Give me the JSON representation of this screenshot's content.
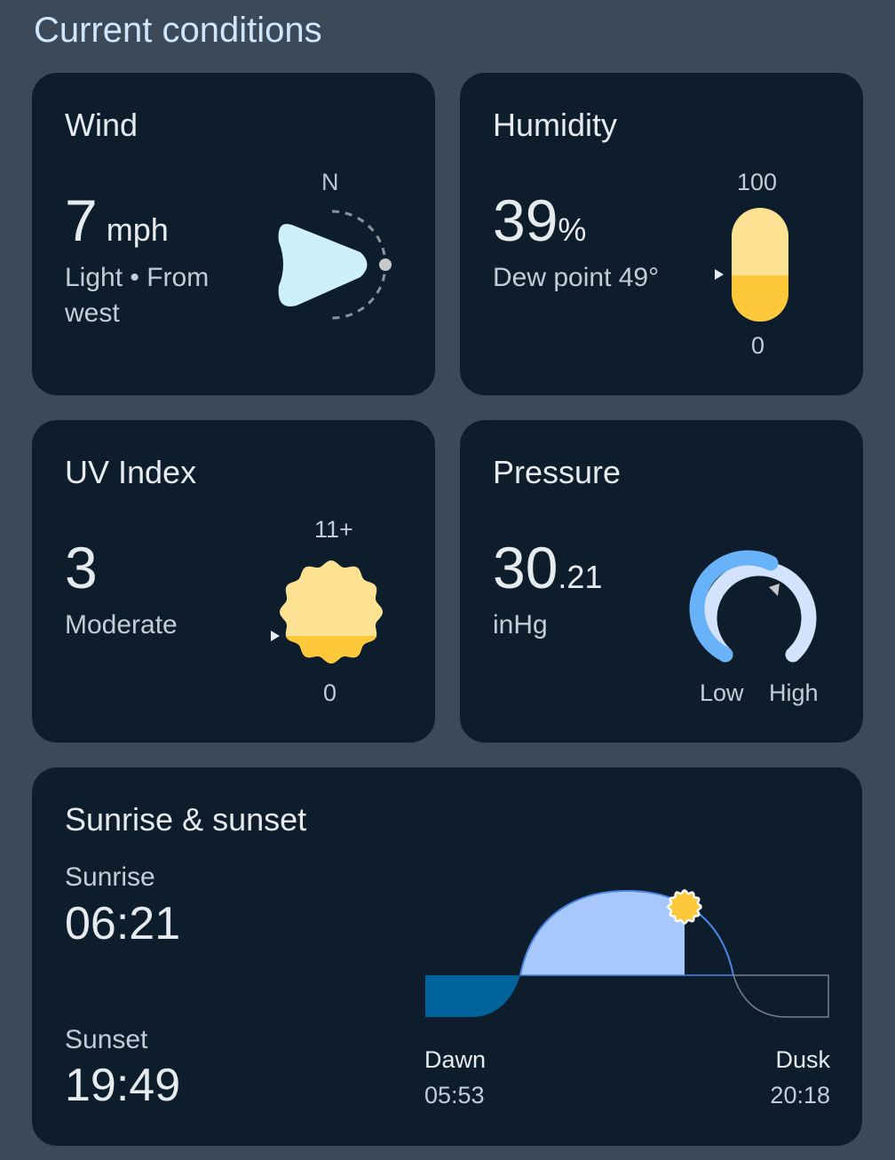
{
  "header": {
    "title": "Current conditions"
  },
  "wind": {
    "title": "Wind",
    "value": "7",
    "unit": "mph",
    "description": "Light • From",
    "description2": "west",
    "compass_label": "N",
    "direction": "west",
    "icon": "wind-direction-arrow"
  },
  "humidity": {
    "title": "Humidity",
    "value": "39",
    "unit": "%",
    "dew_point": "Dew point 49°",
    "scale_max": "100",
    "scale_min": "0",
    "level_percent": 39
  },
  "uv": {
    "title": "UV Index",
    "value": "3",
    "description": "Moderate",
    "scale_max": "11+",
    "scale_min": "0",
    "level": 3
  },
  "pressure": {
    "title": "Pressure",
    "value_int": "30",
    "value_dec": ".21",
    "unit": "inHg",
    "low_label": "Low",
    "high_label": "High"
  },
  "sun": {
    "title": "Sunrise & sunset",
    "sunrise_label": "Sunrise",
    "sunrise": "06:21",
    "sunset_label": "Sunset",
    "sunset": "19:49",
    "dawn_label": "Dawn",
    "dawn": "05:53",
    "dusk_label": "Dusk",
    "dusk": "20:18"
  },
  "colors": {
    "background": "#3c4959",
    "card": "#0e1d2b",
    "yellow": "#fdc93a",
    "light_yellow": "#fde293",
    "blue": "#67b2f9",
    "light_blue": "#a8c7fa",
    "wind_arrow": "#cdf0fa"
  }
}
